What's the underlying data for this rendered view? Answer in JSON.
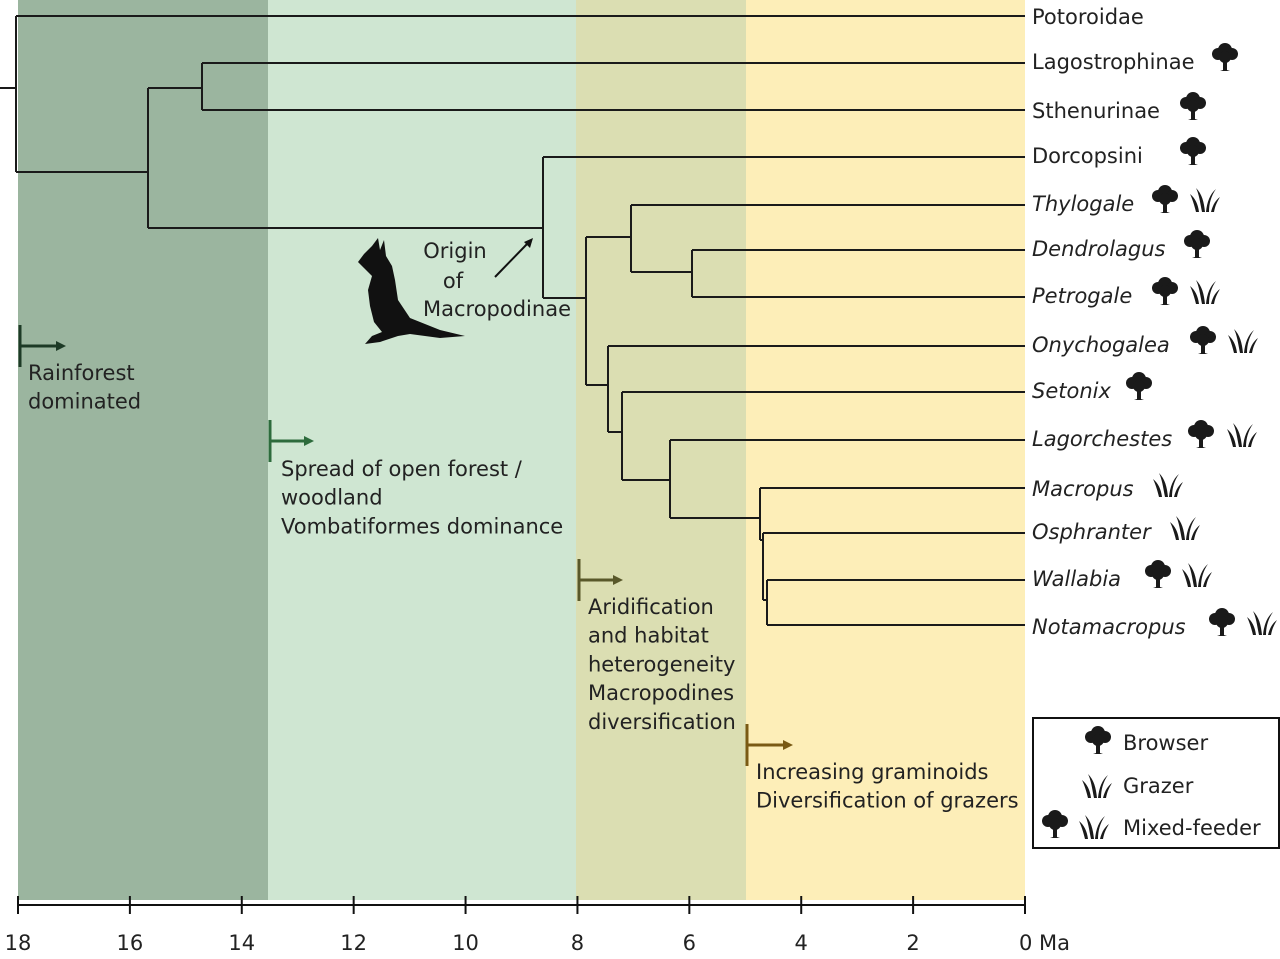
{
  "taxa": [
    "Potoroidae",
    "Lagostrophinae",
    "Sthenurinae",
    "Dorcopsini",
    "Thylogale",
    "Dendrolagus",
    "Petrogale",
    "Onychogalea",
    "Setonix",
    "Lagorchestes",
    "Macropus",
    "Osphranter",
    "Wallabia",
    "Notamacropus"
  ],
  "annotations": {
    "origin": [
      "Origin",
      "of",
      "Macropodinae"
    ],
    "rainforest": [
      "Rainforest",
      "dominated"
    ],
    "open_forest": [
      "Spread of open forest /",
      "woodland",
      "Vombatiformes dominance"
    ],
    "aridification": [
      "Aridification",
      "and habitat",
      "heterogeneity",
      "Macropodines",
      "diversification"
    ],
    "graminoids": [
      "Increasing graminoids",
      "Diversification of grazers"
    ]
  },
  "legend": [
    "Browser",
    "Grazer",
    "Mixed-feeder"
  ],
  "axis": {
    "ticks": [
      18,
      16,
      14,
      12,
      10,
      8,
      6,
      4,
      2,
      {
        "value": 0,
        "label": "0 Ma"
      }
    ]
  }
}
